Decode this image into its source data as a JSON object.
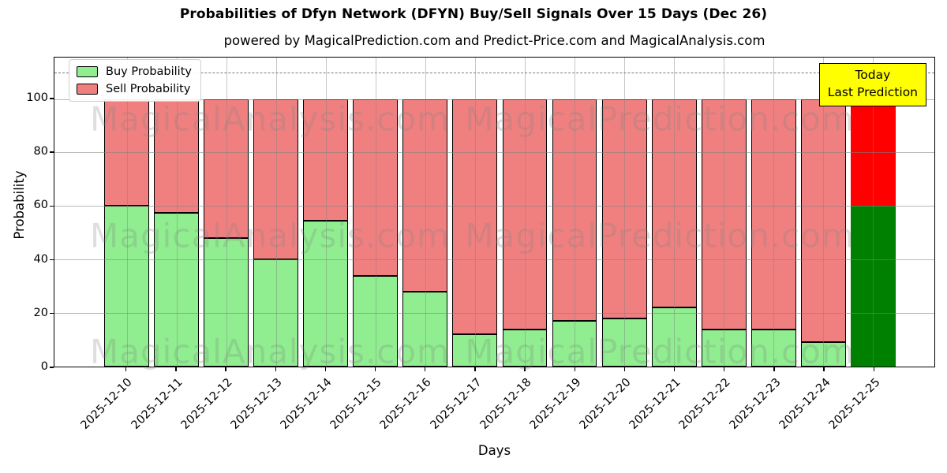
{
  "header": {
    "title": "Probabilities of Dfyn Network (DFYN) Buy/Sell Signals Over 15 Days (Dec 26)",
    "subtitle": "powered by MagicalPrediction.com and Predict-Price.com and MagicalAnalysis.com"
  },
  "legend": {
    "items": [
      {
        "label": "Buy Probability",
        "color": "#90EE90"
      },
      {
        "label": "Sell Probability",
        "color": "#F08080"
      }
    ]
  },
  "annotation": {
    "line1": "Today",
    "line2": "Last Prediction",
    "bg_color": "#FFFF00",
    "border_color": "#000000"
  },
  "watermark": {
    "texts": [
      "MagicalAnalysis.com",
      "MagicalPrediction.com"
    ],
    "color": "#808080"
  },
  "chart_data": {
    "type": "bar",
    "stacked": true,
    "title": "Probabilities of Dfyn Network (DFYN) Buy/Sell Signals Over 15 Days (Dec 26)",
    "xlabel": "Days",
    "ylabel": "Probability",
    "categories": [
      "2025-12-10",
      "2025-12-11",
      "2025-12-12",
      "2025-12-13",
      "2025-12-14",
      "2025-12-15",
      "2025-12-16",
      "2025-12-17",
      "2025-12-18",
      "2025-12-19",
      "2025-12-20",
      "2025-12-21",
      "2025-12-22",
      "2025-12-23",
      "2025-12-24",
      "2025-12-25"
    ],
    "series": [
      {
        "name": "Buy Probability",
        "color": "#90EE90",
        "values": [
          60,
          57.5,
          48,
          40,
          54.5,
          34,
          28,
          12,
          14,
          17,
          18,
          22,
          14,
          14,
          9,
          60
        ]
      },
      {
        "name": "Sell Probability",
        "color": "#F08080",
        "values": [
          40,
          42.5,
          52,
          60,
          45.5,
          66,
          72,
          88,
          86,
          83,
          82,
          78,
          86,
          86,
          91,
          40
        ]
      }
    ],
    "highlight": {
      "index": 15,
      "buy_color": "#008000",
      "sell_color": "#FF0000",
      "note": "Today / Last Prediction"
    },
    "yticks": [
      0,
      20,
      40,
      60,
      80,
      100
    ],
    "ylim": [
      0,
      115.5
    ],
    "dashed_line_y": 110,
    "grid": true,
    "legend_position": "upper-left"
  }
}
